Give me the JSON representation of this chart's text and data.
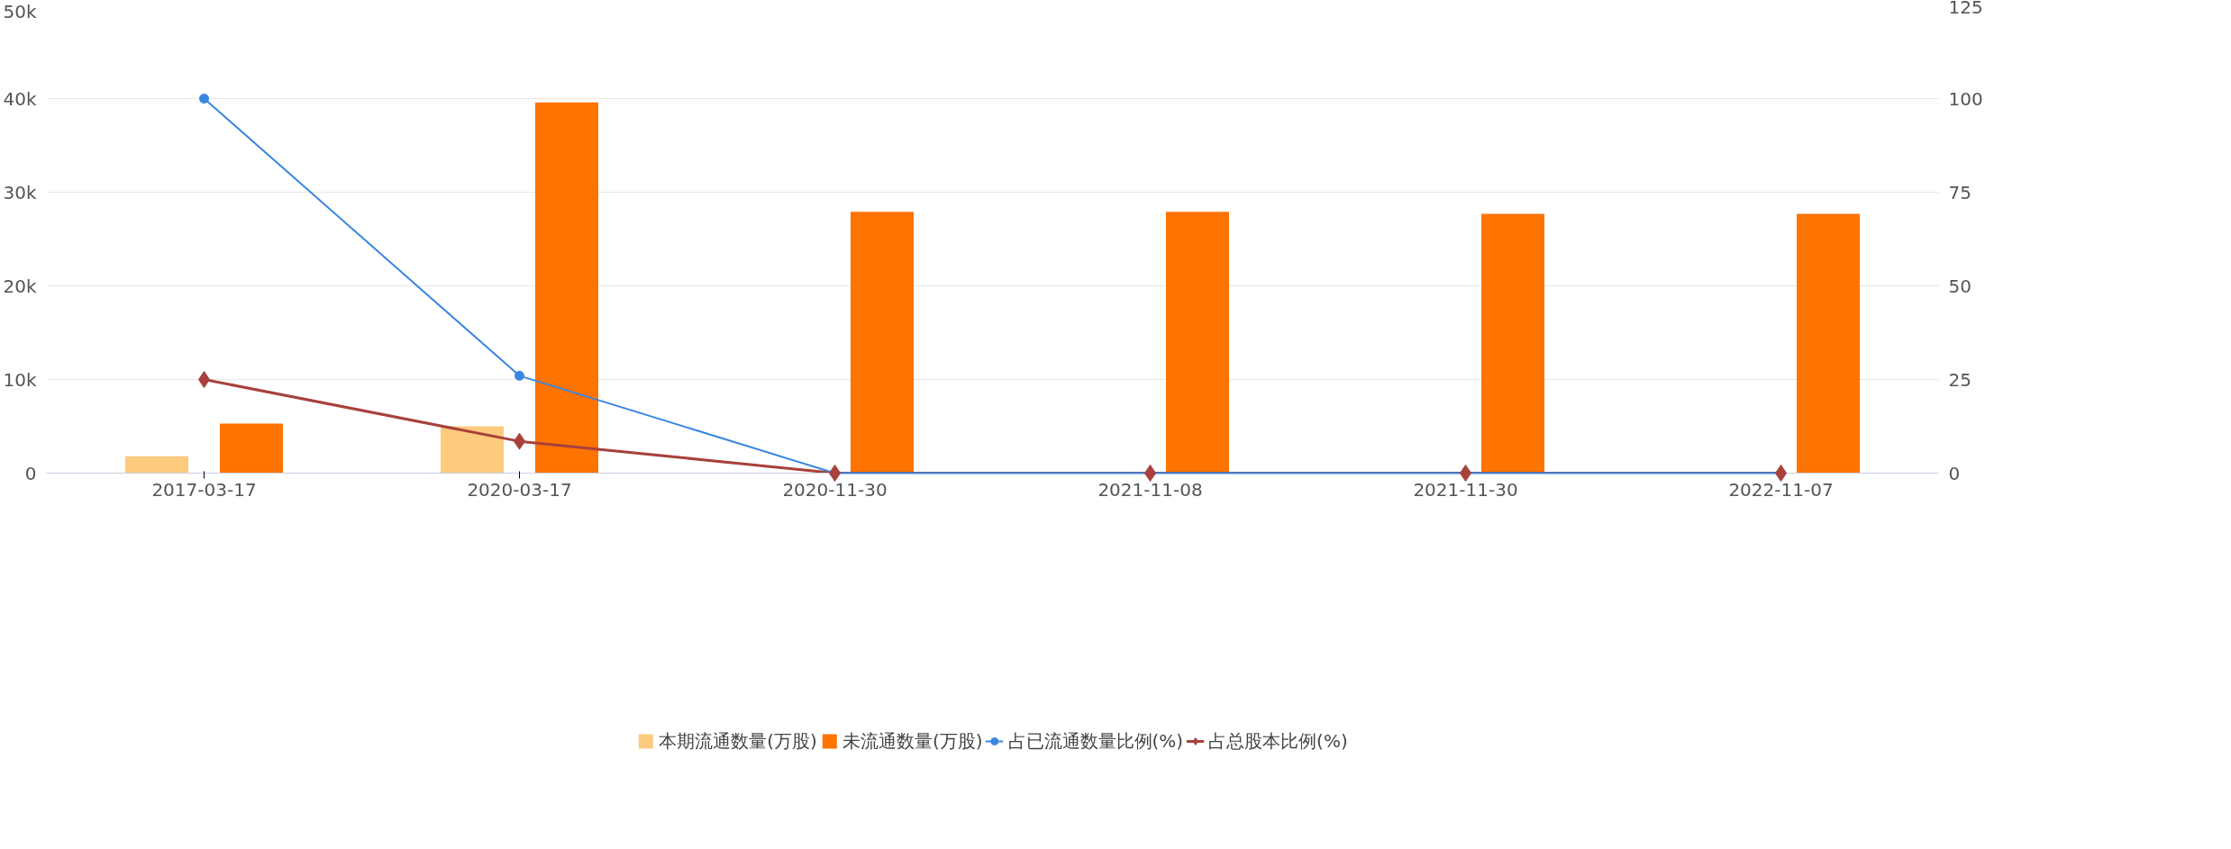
{
  "chart_data": {
    "type": "bar",
    "categories": [
      "2017-03-17",
      "2020-03-17",
      "2020-11-30",
      "2021-11-08",
      "2021-11-30",
      "2022-11-07"
    ],
    "series": [
      {
        "name": "本期流通数量(万股)",
        "color": "#fdcb7d",
        "values": [
          1800,
          5000,
          0,
          0,
          0,
          0
        ]
      },
      {
        "name": "未流通数量(万股)",
        "color": "#ff7300",
        "values": [
          5300,
          39600,
          27900,
          27900,
          27700,
          27700
        ]
      },
      {
        "name": "占已流通数量比例(%)",
        "type": "line",
        "axis": "y2",
        "marker": "circle",
        "color": "#3a86e0",
        "values": [
          100,
          26,
          0,
          0,
          0,
          0
        ]
      },
      {
        "name": "占总股本比例(%)",
        "type": "line",
        "axis": "y2",
        "marker": "diamond",
        "color": "#a8413c",
        "values": [
          25,
          8.5,
          0,
          0,
          0,
          0
        ]
      }
    ],
    "ylim": [
      0,
      50000
    ],
    "yticks": [
      {
        "value": 0,
        "label": "0"
      },
      {
        "value": 10000,
        "label": "10k"
      },
      {
        "value": 20000,
        "label": "20k"
      },
      {
        "value": 30000,
        "label": "30k"
      },
      {
        "value": 40000,
        "label": "40k"
      },
      {
        "value": 50000,
        "label": "50k"
      }
    ],
    "y2lim": [
      0,
      125
    ],
    "y2ticks": [
      0,
      25,
      50,
      75,
      100,
      125
    ],
    "grid": "y",
    "legend": "bottom"
  }
}
